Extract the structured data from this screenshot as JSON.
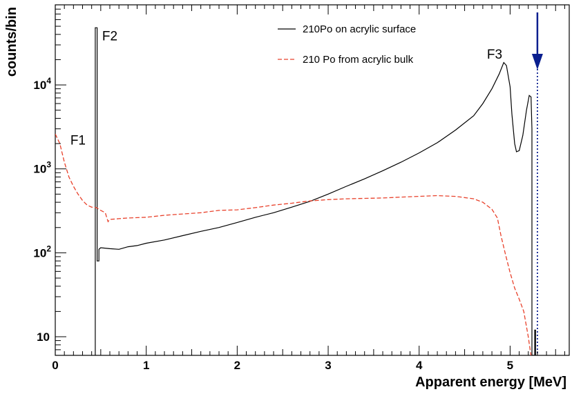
{
  "chart_data": {
    "type": "line",
    "xlabel": "Apparent energy [MeV]",
    "ylabel": "counts/bin",
    "xlim": [
      0,
      5.65
    ],
    "ylim": [
      6,
      90000
    ],
    "yscale": "log",
    "x_ticks": [
      "0",
      "1",
      "2",
      "3",
      "4",
      "5"
    ],
    "y_ticks": [
      {
        "value": 10,
        "label": "10",
        "sup": ""
      },
      {
        "value": 100,
        "label": "10",
        "sup": "2"
      },
      {
        "value": 1000,
        "label": "10",
        "sup": "3"
      },
      {
        "value": 10000,
        "label": "10",
        "sup": "4"
      }
    ],
    "legend_position": "top-center",
    "series": [
      {
        "name": "210Po on acrylic surface",
        "color": "#000000",
        "style": "solid",
        "points": [
          [
            0.44,
            6
          ],
          [
            0.44,
            48000
          ],
          [
            0.46,
            48000
          ],
          [
            0.46,
            80
          ],
          [
            0.48,
            80
          ],
          [
            0.48,
            110
          ],
          [
            0.5,
            115
          ],
          [
            0.6,
            112
          ],
          [
            0.7,
            110
          ],
          [
            0.8,
            118
          ],
          [
            0.9,
            122
          ],
          [
            1.0,
            130
          ],
          [
            1.2,
            142
          ],
          [
            1.4,
            160
          ],
          [
            1.6,
            180
          ],
          [
            1.8,
            200
          ],
          [
            2.0,
            230
          ],
          [
            2.2,
            265
          ],
          [
            2.4,
            300
          ],
          [
            2.6,
            350
          ],
          [
            2.8,
            410
          ],
          [
            3.0,
            500
          ],
          [
            3.2,
            620
          ],
          [
            3.4,
            760
          ],
          [
            3.6,
            950
          ],
          [
            3.8,
            1200
          ],
          [
            4.0,
            1550
          ],
          [
            4.2,
            2050
          ],
          [
            4.4,
            2900
          ],
          [
            4.6,
            4300
          ],
          [
            4.7,
            6000
          ],
          [
            4.8,
            9000
          ],
          [
            4.88,
            13500
          ],
          [
            4.93,
            18500
          ],
          [
            4.96,
            17000
          ],
          [
            5.0,
            9500
          ],
          [
            5.02,
            4500
          ],
          [
            5.05,
            2000
          ],
          [
            5.07,
            1600
          ],
          [
            5.1,
            1650
          ],
          [
            5.14,
            2500
          ],
          [
            5.18,
            5000
          ],
          [
            5.21,
            7500
          ],
          [
            5.23,
            7200
          ],
          [
            5.24,
            3000
          ],
          [
            5.24,
            6
          ],
          [
            5.27,
            6
          ],
          [
            5.27,
            12
          ],
          [
            5.28,
            12
          ],
          [
            5.28,
            6
          ]
        ]
      },
      {
        "name": "210 Po from acrylic bulk",
        "color": "#e8402a",
        "style": "dashed",
        "points": [
          [
            0.0,
            2600
          ],
          [
            0.05,
            2000
          ],
          [
            0.1,
            1200
          ],
          [
            0.15,
            800
          ],
          [
            0.2,
            620
          ],
          [
            0.25,
            500
          ],
          [
            0.3,
            420
          ],
          [
            0.35,
            370
          ],
          [
            0.4,
            350
          ],
          [
            0.45,
            345
          ],
          [
            0.5,
            320
          ],
          [
            0.55,
            300
          ],
          [
            0.58,
            235
          ],
          [
            0.6,
            250
          ],
          [
            0.7,
            255
          ],
          [
            0.8,
            260
          ],
          [
            1.0,
            265
          ],
          [
            1.2,
            280
          ],
          [
            1.4,
            290
          ],
          [
            1.6,
            300
          ],
          [
            1.8,
            320
          ],
          [
            2.0,
            325
          ],
          [
            2.2,
            345
          ],
          [
            2.4,
            370
          ],
          [
            2.6,
            390
          ],
          [
            2.8,
            415
          ],
          [
            3.0,
            430
          ],
          [
            3.2,
            440
          ],
          [
            3.4,
            445
          ],
          [
            3.6,
            450
          ],
          [
            3.8,
            460
          ],
          [
            4.0,
            470
          ],
          [
            4.2,
            480
          ],
          [
            4.4,
            470
          ],
          [
            4.6,
            440
          ],
          [
            4.7,
            400
          ],
          [
            4.8,
            330
          ],
          [
            4.86,
            260
          ],
          [
            4.9,
            160
          ],
          [
            4.95,
            95
          ],
          [
            5.0,
            58
          ],
          [
            5.05,
            38
          ],
          [
            5.1,
            28
          ],
          [
            5.15,
            20
          ],
          [
            5.2,
            10
          ],
          [
            5.22,
            7
          ],
          [
            5.23,
            6
          ]
        ]
      }
    ],
    "annotations": [
      {
        "text": "F1",
        "x": 0.25,
        "y": 1950
      },
      {
        "text": "F2",
        "x": 0.6,
        "y": 34000
      },
      {
        "text": "F3",
        "x": 4.83,
        "y": 20500
      }
    ],
    "marker": {
      "x": 5.3,
      "color": "#0a1f8f",
      "description": "arrow"
    }
  }
}
